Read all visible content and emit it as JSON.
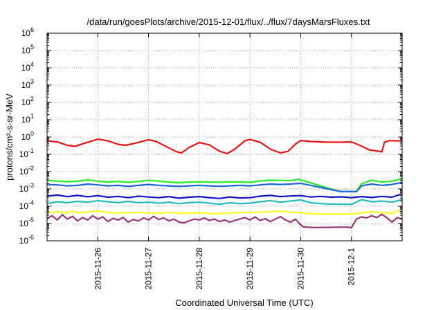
{
  "chart_data": {
    "type": "line",
    "title": "/data/run/goesPlots/archive/2015-12-01/flux/../flux/7daysMarsFluxes.txt",
    "xlabel": "Coordinated Universal Time (UTC)",
    "ylabel": "protons/cm²-s-sr-MeV",
    "yscale": "log",
    "ylim": [
      1e-06,
      1000000.0
    ],
    "xlim": [
      0.0,
      7.0
    ],
    "grid": true,
    "x_ticks": [
      {
        "x": 1,
        "label": "2015-11-26"
      },
      {
        "x": 2,
        "label": "2015-11-27"
      },
      {
        "x": 3,
        "label": "2015-11-28"
      },
      {
        "x": 4,
        "label": "2015-11-29"
      },
      {
        "x": 5,
        "label": "2015-11-30"
      },
      {
        "x": 6,
        "label": "2015-12-1"
      }
    ],
    "y_ticks": [
      {
        "exp": -6,
        "base": "10",
        "sup": "-6"
      },
      {
        "exp": -5,
        "base": "10",
        "sup": "-5"
      },
      {
        "exp": -4,
        "base": "10",
        "sup": "-4"
      },
      {
        "exp": -3,
        "base": "10",
        "sup": "-3"
      },
      {
        "exp": -2,
        "base": "10",
        "sup": "-2"
      },
      {
        "exp": -1,
        "base": "10",
        "sup": "-1"
      },
      {
        "exp": 0,
        "base": "10",
        "sup": "0"
      },
      {
        "exp": 1,
        "base": "10",
        "sup": "1"
      },
      {
        "exp": 2,
        "base": "10",
        "sup": "2"
      },
      {
        "exp": 3,
        "base": "10",
        "sup": "3"
      },
      {
        "exp": 4,
        "base": "10",
        "sup": "4"
      },
      {
        "exp": 5,
        "base": "10",
        "sup": "5"
      },
      {
        "exp": 6,
        "base": "10",
        "sup": "6"
      }
    ],
    "series": [
      {
        "color": "#ee1111",
        "points": [
          [
            0.0,
            0.6
          ],
          [
            0.2,
            0.52
          ],
          [
            0.4,
            0.33
          ],
          [
            0.55,
            0.29
          ],
          [
            0.75,
            0.45
          ],
          [
            1.0,
            0.75
          ],
          [
            1.2,
            0.6
          ],
          [
            1.4,
            0.38
          ],
          [
            1.55,
            0.33
          ],
          [
            1.75,
            0.45
          ],
          [
            2.0,
            0.7
          ],
          [
            2.15,
            0.55
          ],
          [
            2.35,
            0.28
          ],
          [
            2.55,
            0.14
          ],
          [
            2.65,
            0.12
          ],
          [
            2.8,
            0.25
          ],
          [
            3.0,
            0.48
          ],
          [
            3.2,
            0.35
          ],
          [
            3.4,
            0.15
          ],
          [
            3.55,
            0.11
          ],
          [
            3.7,
            0.2
          ],
          [
            3.9,
            0.6
          ],
          [
            4.0,
            0.72
          ],
          [
            4.2,
            0.5
          ],
          [
            4.4,
            0.2
          ],
          [
            4.6,
            0.12
          ],
          [
            4.75,
            0.15
          ],
          [
            4.9,
            0.4
          ],
          [
            5.0,
            0.62
          ],
          [
            5.2,
            0.55
          ],
          [
            5.5,
            0.5
          ],
          [
            5.8,
            0.5
          ],
          [
            6.0,
            0.52
          ],
          [
            6.2,
            0.3
          ],
          [
            6.35,
            0.18
          ],
          [
            6.6,
            0.14
          ],
          [
            6.65,
            0.5
          ],
          [
            6.75,
            0.62
          ],
          [
            6.85,
            0.6
          ],
          [
            7.0,
            0.6
          ]
        ]
      },
      {
        "color": "#22ee22",
        "points": [
          [
            0.0,
            0.0032
          ],
          [
            0.2,
            0.0028
          ],
          [
            0.4,
            0.0026
          ],
          [
            0.6,
            0.0028
          ],
          [
            0.8,
            0.0033
          ],
          [
            1.0,
            0.0028
          ],
          [
            1.2,
            0.0025
          ],
          [
            1.4,
            0.0027
          ],
          [
            1.6,
            0.0024
          ],
          [
            1.8,
            0.0027
          ],
          [
            2.0,
            0.0032
          ],
          [
            2.2,
            0.0028
          ],
          [
            2.4,
            0.0025
          ],
          [
            2.6,
            0.0023
          ],
          [
            2.8,
            0.0025
          ],
          [
            3.0,
            0.0026
          ],
          [
            3.2,
            0.0025
          ],
          [
            3.4,
            0.0024
          ],
          [
            3.6,
            0.0026
          ],
          [
            3.8,
            0.0025
          ],
          [
            4.0,
            0.0024
          ],
          [
            4.2,
            0.0029
          ],
          [
            4.4,
            0.0032
          ],
          [
            4.6,
            0.0031
          ],
          [
            4.8,
            0.003
          ],
          [
            4.95,
            0.0036
          ],
          [
            5.05,
            0.003
          ],
          [
            5.3,
            0.0018
          ],
          [
            5.5,
            0.0012
          ],
          [
            5.8,
            0.0007
          ],
          [
            6.1,
            0.0007
          ],
          [
            6.2,
            0.002
          ],
          [
            6.4,
            0.0032
          ],
          [
            6.6,
            0.0025
          ],
          [
            6.8,
            0.0028
          ],
          [
            7.0,
            0.0038
          ]
        ]
      },
      {
        "color": "#1a66dd",
        "points": [
          [
            0.0,
            0.0018
          ],
          [
            0.2,
            0.0017
          ],
          [
            0.4,
            0.0015
          ],
          [
            0.6,
            0.0016
          ],
          [
            0.8,
            0.0019
          ],
          [
            1.0,
            0.0017
          ],
          [
            1.2,
            0.0015
          ],
          [
            1.4,
            0.0016
          ],
          [
            1.6,
            0.0014
          ],
          [
            1.8,
            0.0016
          ],
          [
            2.0,
            0.0018
          ],
          [
            2.2,
            0.0016
          ],
          [
            2.4,
            0.0015
          ],
          [
            2.6,
            0.0014
          ],
          [
            2.8,
            0.0015
          ],
          [
            3.0,
            0.0016
          ],
          [
            3.2,
            0.0015
          ],
          [
            3.4,
            0.0014
          ],
          [
            3.6,
            0.0015
          ],
          [
            3.8,
            0.0016
          ],
          [
            4.0,
            0.0015
          ],
          [
            4.2,
            0.0017
          ],
          [
            4.4,
            0.0019
          ],
          [
            4.6,
            0.0018
          ],
          [
            4.8,
            0.0019
          ],
          [
            5.0,
            0.0021
          ],
          [
            5.2,
            0.0016
          ],
          [
            5.4,
            0.0012
          ],
          [
            5.6,
            0.0009
          ],
          [
            5.8,
            0.0007
          ],
          [
            6.1,
            0.0007
          ],
          [
            6.2,
            0.0015
          ],
          [
            6.4,
            0.0019
          ],
          [
            6.6,
            0.0016
          ],
          [
            6.8,
            0.0018
          ],
          [
            7.0,
            0.0024
          ]
        ]
      },
      {
        "color": "#1111cc",
        "points": [
          [
            0.0,
            0.00038
          ],
          [
            0.2,
            0.00044
          ],
          [
            0.4,
            0.00036
          ],
          [
            0.6,
            0.00042
          ],
          [
            0.8,
            0.00035
          ],
          [
            1.0,
            0.00041
          ],
          [
            1.2,
            0.00033
          ],
          [
            1.4,
            0.00037
          ],
          [
            1.6,
            0.00031
          ],
          [
            1.8,
            0.00038
          ],
          [
            2.0,
            0.00034
          ],
          [
            2.2,
            0.00031
          ],
          [
            2.4,
            0.00036
          ],
          [
            2.6,
            0.00029
          ],
          [
            2.8,
            0.00033
          ],
          [
            3.0,
            0.00036
          ],
          [
            3.2,
            0.00031
          ],
          [
            3.4,
            0.00028
          ],
          [
            3.6,
            0.00034
          ],
          [
            3.8,
            0.0003
          ],
          [
            4.0,
            0.00031
          ],
          [
            4.2,
            0.00038
          ],
          [
            4.4,
            0.00042
          ],
          [
            4.6,
            0.00036
          ],
          [
            4.8,
            0.00039
          ],
          [
            5.0,
            0.00041
          ],
          [
            5.2,
            0.00034
          ],
          [
            5.4,
            0.00037
          ],
          [
            5.6,
            0.00033
          ],
          [
            5.8,
            0.00035
          ],
          [
            6.0,
            0.00031
          ],
          [
            6.2,
            0.00036
          ],
          [
            6.4,
            0.00032
          ],
          [
            6.6,
            0.00037
          ],
          [
            6.8,
            0.00033
          ],
          [
            7.0,
            0.00052
          ]
        ]
      },
      {
        "color": "#22bbbb",
        "points": [
          [
            0.0,
            0.00014
          ],
          [
            0.2,
            0.00018
          ],
          [
            0.4,
            0.00016
          ],
          [
            0.6,
            0.00019
          ],
          [
            0.8,
            0.00017
          ],
          [
            1.0,
            0.00021
          ],
          [
            1.2,
            0.00018
          ],
          [
            1.4,
            0.00016
          ],
          [
            1.6,
            0.00019
          ],
          [
            1.8,
            0.00016
          ],
          [
            2.0,
            0.00017
          ],
          [
            2.2,
            0.00015
          ],
          [
            2.4,
            0.00017
          ],
          [
            2.6,
            0.00014
          ],
          [
            2.8,
            0.00016
          ],
          [
            3.0,
            0.00017
          ],
          [
            3.2,
            0.00015
          ],
          [
            3.4,
            0.00013
          ],
          [
            3.6,
            0.00016
          ],
          [
            3.8,
            0.00014
          ],
          [
            4.0,
            0.00015
          ],
          [
            4.2,
            0.00018
          ],
          [
            4.4,
            0.00021
          ],
          [
            4.6,
            0.00017
          ],
          [
            4.8,
            0.0002
          ],
          [
            5.0,
            0.00023
          ],
          [
            5.2,
            0.00016
          ],
          [
            5.4,
            0.00014
          ],
          [
            5.7,
            0.00013
          ],
          [
            6.0,
            0.00013
          ],
          [
            6.2,
            0.00024
          ],
          [
            6.4,
            0.00018
          ],
          [
            6.6,
            0.0002
          ],
          [
            6.8,
            0.00017
          ],
          [
            7.0,
            0.00024
          ]
        ]
      },
      {
        "color": "#ffff22",
        "points": [
          [
            0.0,
            4.2e-05
          ],
          [
            0.2,
            4.8e-05
          ],
          [
            0.4,
            4e-05
          ],
          [
            0.5,
            5.2e-05
          ],
          [
            0.6,
            4.2e-05
          ],
          [
            0.8,
            4.6e-05
          ],
          [
            1.0,
            5.4e-05
          ],
          [
            1.2,
            4.4e-05
          ],
          [
            1.4,
            4e-05
          ],
          [
            1.6,
            4.2e-05
          ],
          [
            1.8,
            4.5e-05
          ],
          [
            2.0,
            4.1e-05
          ],
          [
            2.2,
            3.8e-05
          ],
          [
            2.4,
            4.5e-05
          ],
          [
            2.6,
            3.8e-05
          ],
          [
            2.8,
            4e-05
          ],
          [
            3.0,
            4.2e-05
          ],
          [
            3.2,
            3.8e-05
          ],
          [
            3.4,
            3.6e-05
          ],
          [
            3.6,
            4e-05
          ],
          [
            3.8,
            4.3e-05
          ],
          [
            4.0,
            4.5e-05
          ],
          [
            4.2,
            4.4e-05
          ],
          [
            4.4,
            4.8e-05
          ],
          [
            4.6,
            5.2e-05
          ],
          [
            4.8,
            4.5e-05
          ],
          [
            5.0,
            4.2e-05
          ],
          [
            5.2,
            3.6e-05
          ],
          [
            5.5,
            3.5e-05
          ],
          [
            5.8,
            3.5e-05
          ],
          [
            6.0,
            3.5e-05
          ],
          [
            6.2,
            4.2e-05
          ],
          [
            6.4,
            4.8e-05
          ],
          [
            6.6,
            4.2e-05
          ],
          [
            6.8,
            3.8e-05
          ],
          [
            7.0,
            7e-05
          ]
        ]
      },
      {
        "color": "#993377",
        "points": [
          [
            0.0,
            2e-05
          ],
          [
            0.1,
            2.8e-05
          ],
          [
            0.2,
            1.6e-05
          ],
          [
            0.3,
            3.2e-05
          ],
          [
            0.4,
            1.8e-05
          ],
          [
            0.5,
            2.6e-05
          ],
          [
            0.6,
            1.4e-05
          ],
          [
            0.7,
            2.2e-05
          ],
          [
            0.8,
            1.6e-05
          ],
          [
            0.9,
            2.8e-05
          ],
          [
            1.0,
            1.8e-05
          ],
          [
            1.1,
            2.4e-05
          ],
          [
            1.2,
            1.3e-05
          ],
          [
            1.3,
            2e-05
          ],
          [
            1.4,
            1.6e-05
          ],
          [
            1.5,
            2.2e-05
          ],
          [
            1.6,
            1.2e-05
          ],
          [
            1.7,
            1.7e-05
          ],
          [
            1.8,
            1.4e-05
          ],
          [
            1.9,
            2.1e-05
          ],
          [
            2.0,
            1.6e-05
          ],
          [
            2.1,
            2.6e-05
          ],
          [
            2.2,
            1.7e-05
          ],
          [
            2.3,
            2.1e-05
          ],
          [
            2.4,
            1.4e-05
          ],
          [
            2.5,
            1.8e-05
          ],
          [
            2.6,
            1.2e-05
          ],
          [
            2.7,
            1.1e-05
          ],
          [
            2.8,
            1.4e-05
          ],
          [
            2.9,
            1.8e-05
          ],
          [
            3.0,
            1.6e-05
          ],
          [
            3.1,
            2.1e-05
          ],
          [
            3.2,
            1.5e-05
          ],
          [
            3.3,
            1.8e-05
          ],
          [
            3.4,
            1.3e-05
          ],
          [
            3.5,
            1.6e-05
          ],
          [
            3.6,
            1.2e-05
          ],
          [
            3.7,
            1.5e-05
          ],
          [
            3.8,
            1.8e-05
          ],
          [
            3.9,
            2.2e-05
          ],
          [
            4.0,
            1.6e-05
          ],
          [
            4.1,
            2.4e-05
          ],
          [
            4.2,
            1.5e-05
          ],
          [
            4.3,
            1.9e-05
          ],
          [
            4.4,
            1.3e-05
          ],
          [
            4.5,
            1.8e-05
          ],
          [
            4.6,
            2.5e-05
          ],
          [
            4.7,
            1.6e-05
          ],
          [
            4.8,
            1.2e-05
          ],
          [
            4.9,
            1.8e-05
          ],
          [
            4.97,
            1e-05
          ],
          [
            5.05,
            6.3e-06
          ],
          [
            5.3,
            5.8e-06
          ],
          [
            5.6,
            6e-06
          ],
          [
            5.9,
            6.2e-06
          ],
          [
            6.0,
            5.8e-06
          ],
          [
            6.1,
            1.8e-05
          ],
          [
            6.2,
            2.4e-05
          ],
          [
            6.3,
            2.1e-05
          ],
          [
            6.4,
            2.8e-05
          ],
          [
            6.5,
            2.2e-05
          ],
          [
            6.6,
            3.4e-05
          ],
          [
            6.7,
            2.1e-05
          ],
          [
            6.8,
            1.2e-05
          ],
          [
            6.9,
            2.2e-05
          ],
          [
            7.0,
            1.8e-05
          ]
        ]
      }
    ]
  }
}
